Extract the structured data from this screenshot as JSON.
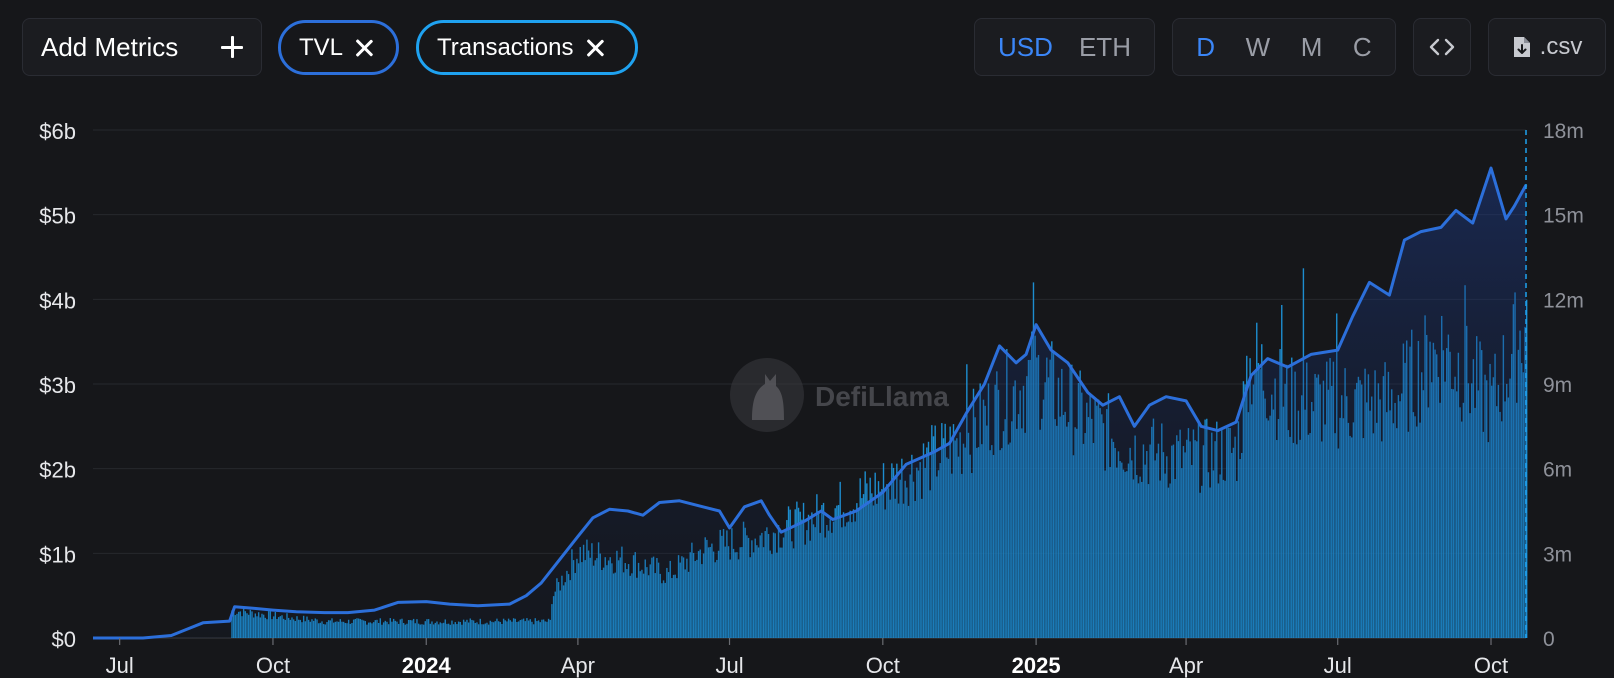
{
  "toolbar": {
    "add_metrics_label": "Add Metrics",
    "metric_pills": [
      {
        "label": "TVL",
        "color": "#2c6fda"
      },
      {
        "label": "Transactions",
        "color": "#1fa2f0"
      }
    ],
    "currency_options": [
      "USD",
      "ETH"
    ],
    "currency_selected": "USD",
    "period_options": [
      "D",
      "W",
      "M",
      "C"
    ],
    "period_selected": "D",
    "csv_label": ".csv"
  },
  "watermark": "DefiLlama",
  "colors": {
    "tvl": "#2c6fda",
    "transactions": "#1fa2f0",
    "accent": "#3b86f7",
    "background": "#16171a"
  },
  "chart_data": {
    "type": "line",
    "grid": true,
    "legend": "none",
    "x_ticks": [
      {
        "date": "2023-07-01",
        "label": "Jul",
        "bold": false
      },
      {
        "date": "2023-10-01",
        "label": "Oct",
        "bold": false
      },
      {
        "date": "2024-01-01",
        "label": "2024",
        "bold": true
      },
      {
        "date": "2024-04-01",
        "label": "Apr",
        "bold": false
      },
      {
        "date": "2024-07-01",
        "label": "Jul",
        "bold": false
      },
      {
        "date": "2024-10-01",
        "label": "Oct",
        "bold": false
      },
      {
        "date": "2025-01-01",
        "label": "2025",
        "bold": true
      },
      {
        "date": "2025-04-01",
        "label": "Apr",
        "bold": false
      },
      {
        "date": "2025-07-01",
        "label": "Jul",
        "bold": false
      },
      {
        "date": "2025-10-01",
        "label": "Oct",
        "bold": false
      }
    ],
    "x_range": [
      "2023-06-15",
      "2025-10-22"
    ],
    "y_left": {
      "ticks": [
        "$0",
        "$1b",
        "$2b",
        "$3b",
        "$4b",
        "$5b",
        "$6b"
      ],
      "values": [
        0,
        1,
        2,
        3,
        4,
        5,
        6
      ],
      "unit": "billion USD",
      "range": [
        0,
        6
      ]
    },
    "y_right": {
      "ticks": [
        "0",
        "3m",
        "6m",
        "9m",
        "12m",
        "15m",
        "18m"
      ],
      "values": [
        0,
        3,
        6,
        9,
        12,
        15,
        18
      ],
      "unit": "million",
      "range": [
        0,
        18
      ]
    },
    "series": [
      {
        "name": "TVL",
        "type": "line",
        "axis": "left",
        "points": [
          [
            "2023-06-15",
            0.0
          ],
          [
            "2023-07-15",
            0.0
          ],
          [
            "2023-08-01",
            0.03
          ],
          [
            "2023-08-10",
            0.1
          ],
          [
            "2023-08-20",
            0.18
          ],
          [
            "2023-09-05",
            0.2
          ],
          [
            "2023-09-08",
            0.37
          ],
          [
            "2023-09-20",
            0.35
          ],
          [
            "2023-10-01",
            0.33
          ],
          [
            "2023-10-15",
            0.31
          ],
          [
            "2023-11-01",
            0.3
          ],
          [
            "2023-11-15",
            0.3
          ],
          [
            "2023-12-01",
            0.33
          ],
          [
            "2023-12-15",
            0.42
          ],
          [
            "2024-01-01",
            0.43
          ],
          [
            "2024-01-15",
            0.4
          ],
          [
            "2024-02-01",
            0.38
          ],
          [
            "2024-02-20",
            0.4
          ],
          [
            "2024-03-01",
            0.5
          ],
          [
            "2024-03-10",
            0.65
          ],
          [
            "2024-03-20",
            0.9
          ],
          [
            "2024-04-01",
            1.2
          ],
          [
            "2024-04-10",
            1.42
          ],
          [
            "2024-04-20",
            1.52
          ],
          [
            "2024-05-01",
            1.5
          ],
          [
            "2024-05-10",
            1.45
          ],
          [
            "2024-05-20",
            1.6
          ],
          [
            "2024-06-01",
            1.62
          ],
          [
            "2024-06-15",
            1.55
          ],
          [
            "2024-06-25",
            1.5
          ],
          [
            "2024-07-01",
            1.3
          ],
          [
            "2024-07-10",
            1.55
          ],
          [
            "2024-07-20",
            1.62
          ],
          [
            "2024-07-25",
            1.45
          ],
          [
            "2024-08-01",
            1.25
          ],
          [
            "2024-08-15",
            1.38
          ],
          [
            "2024-08-25",
            1.5
          ],
          [
            "2024-09-01",
            1.4
          ],
          [
            "2024-09-15",
            1.5
          ],
          [
            "2024-10-01",
            1.72
          ],
          [
            "2024-10-15",
            2.05
          ],
          [
            "2024-11-01",
            2.2
          ],
          [
            "2024-11-10",
            2.3
          ],
          [
            "2024-11-20",
            2.65
          ],
          [
            "2024-12-01",
            3.0
          ],
          [
            "2024-12-10",
            3.45
          ],
          [
            "2024-12-20",
            3.25
          ],
          [
            "2024-12-26",
            3.35
          ],
          [
            "2025-01-01",
            3.7
          ],
          [
            "2025-01-10",
            3.4
          ],
          [
            "2025-01-20",
            3.25
          ],
          [
            "2025-02-01",
            2.9
          ],
          [
            "2025-02-10",
            2.75
          ],
          [
            "2025-02-20",
            2.85
          ],
          [
            "2025-03-01",
            2.5
          ],
          [
            "2025-03-10",
            2.75
          ],
          [
            "2025-03-20",
            2.85
          ],
          [
            "2025-04-01",
            2.8
          ],
          [
            "2025-04-10",
            2.5
          ],
          [
            "2025-04-20",
            2.45
          ],
          [
            "2025-05-01",
            2.55
          ],
          [
            "2025-05-10",
            3.1
          ],
          [
            "2025-05-20",
            3.3
          ],
          [
            "2025-06-01",
            3.2
          ],
          [
            "2025-06-15",
            3.35
          ],
          [
            "2025-07-01",
            3.4
          ],
          [
            "2025-07-10",
            3.8
          ],
          [
            "2025-07-20",
            4.2
          ],
          [
            "2025-08-01",
            4.05
          ],
          [
            "2025-08-10",
            4.7
          ],
          [
            "2025-08-20",
            4.8
          ],
          [
            "2025-09-01",
            4.85
          ],
          [
            "2025-09-10",
            5.05
          ],
          [
            "2025-09-20",
            4.9
          ],
          [
            "2025-10-01",
            5.55
          ],
          [
            "2025-10-10",
            4.95
          ],
          [
            "2025-10-15",
            5.1
          ],
          [
            "2025-10-22",
            5.35
          ]
        ]
      },
      {
        "name": "Transactions",
        "type": "bar",
        "axis": "right",
        "start": "2023-09-06",
        "end": "2025-10-22",
        "trend": [
          [
            "2023-09-06",
            1.0
          ],
          [
            "2023-10-01",
            0.8
          ],
          [
            "2023-11-01",
            0.6
          ],
          [
            "2024-01-01",
            0.6
          ],
          [
            "2024-03-15",
            0.6
          ],
          [
            "2024-03-16",
            1.5
          ],
          [
            "2024-04-01",
            3.1
          ],
          [
            "2024-05-01",
            2.8
          ],
          [
            "2024-05-25",
            2.3
          ],
          [
            "2024-06-15",
            3.2
          ],
          [
            "2024-07-15",
            3.6
          ],
          [
            "2024-08-15",
            4.2
          ],
          [
            "2024-10-01",
            5.5
          ],
          [
            "2024-11-15",
            7.0
          ],
          [
            "2024-12-10",
            8.5
          ],
          [
            "2025-01-01",
            9.5
          ],
          [
            "2025-02-01",
            7.8
          ],
          [
            "2025-03-01",
            6.8
          ],
          [
            "2025-04-01",
            6.5
          ],
          [
            "2025-05-01",
            6.8
          ],
          [
            "2025-05-10",
            10.0
          ],
          [
            "2025-06-01",
            8.5
          ],
          [
            "2025-07-01",
            8.5
          ],
          [
            "2025-08-01",
            8.5
          ],
          [
            "2025-09-01",
            10.5
          ],
          [
            "2025-10-01",
            8.5
          ],
          [
            "2025-10-22",
            11.5
          ]
        ],
        "peaks_millions": [
          [
            "2024-11-20",
            9.7
          ],
          [
            "2024-12-30",
            12.6
          ],
          [
            "2025-05-07",
            10.0
          ],
          [
            "2025-05-28",
            11.8
          ],
          [
            "2025-06-10",
            13.1
          ],
          [
            "2025-06-30",
            11.5
          ],
          [
            "2025-08-25",
            10.5
          ],
          [
            "2025-09-15",
            12.5
          ]
        ]
      }
    ]
  }
}
